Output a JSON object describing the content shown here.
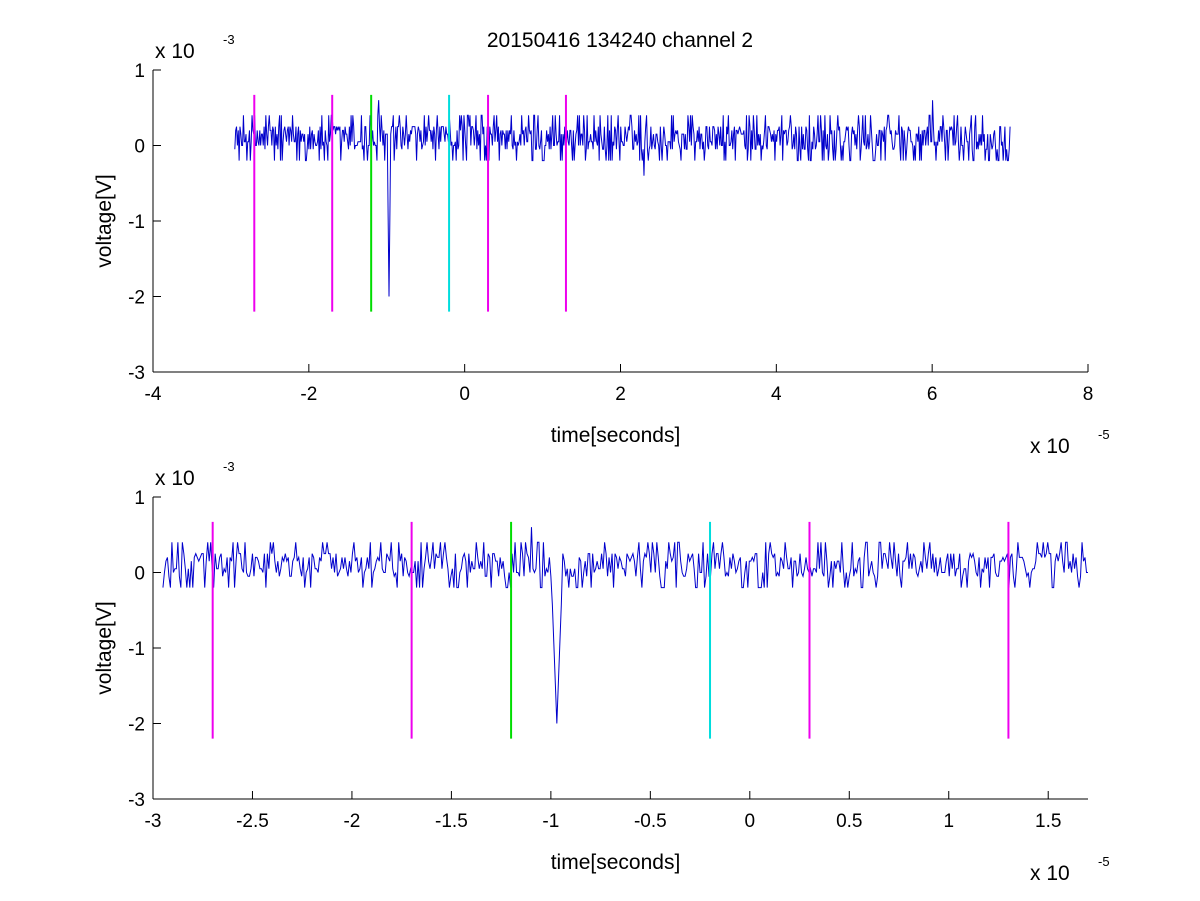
{
  "figure": {
    "title": "20150416 134240 channel 2"
  },
  "colors": {
    "signal": "#0000cc",
    "marker_magenta": "#ee00ee",
    "marker_green": "#00dd00",
    "marker_cyan": "#00dddd",
    "axes": "#000000"
  },
  "chart_data": [
    {
      "type": "line",
      "title": "20150416 134240 channel 2",
      "xlabel": "time[seconds]",
      "ylabel": "voltage[V]",
      "x_exponent_base": "x 10",
      "x_exponent_power": "-5",
      "y_exponent_base": "x 10",
      "y_exponent_power": "-3",
      "xlim": [
        -4,
        8
      ],
      "ylim": [
        -3,
        1
      ],
      "xticks": [
        -4,
        -2,
        0,
        2,
        4,
        6,
        8
      ],
      "xtick_labels": [
        "-4",
        "-2",
        "0",
        "2",
        "4",
        "6",
        "8"
      ],
      "yticks": [
        -3,
        -2,
        -1,
        0,
        1
      ],
      "ytick_labels": [
        "-3",
        "-2",
        "-1",
        "0",
        "1"
      ],
      "grid": false,
      "signal": {
        "x_start": -2.95,
        "x_end": 7.0,
        "baseline": 0.1,
        "noise_amplitude": 0.3,
        "spikes": [
          {
            "x": -0.97,
            "y": -2.0
          },
          {
            "x": 2.3,
            "y": -0.4
          },
          {
            "x": 6.0,
            "y": 0.6
          },
          {
            "x": -1.1,
            "y": 0.6
          }
        ]
      },
      "markers": [
        {
          "x": -2.7,
          "y_top": 0.67,
          "y_bottom": -2.2,
          "color": "magenta"
        },
        {
          "x": -1.7,
          "y_top": 0.67,
          "y_bottom": -2.2,
          "color": "magenta"
        },
        {
          "x": -1.2,
          "y_top": 0.67,
          "y_bottom": -2.2,
          "color": "green"
        },
        {
          "x": -0.2,
          "y_top": 0.67,
          "y_bottom": -2.2,
          "color": "cyan"
        },
        {
          "x": 0.3,
          "y_top": 0.67,
          "y_bottom": -2.2,
          "color": "magenta"
        },
        {
          "x": 1.3,
          "y_top": 0.67,
          "y_bottom": -2.2,
          "color": "magenta"
        }
      ]
    },
    {
      "type": "line",
      "title": "",
      "xlabel": "time[seconds]",
      "ylabel": "voltage[V]",
      "x_exponent_base": "x 10",
      "x_exponent_power": "-5",
      "y_exponent_base": "x 10",
      "y_exponent_power": "-3",
      "xlim": [
        -3,
        1.7
      ],
      "ylim": [
        -3,
        1
      ],
      "xticks": [
        -3,
        -2.5,
        -2,
        -1.5,
        -1,
        -0.5,
        0,
        0.5,
        1,
        1.5
      ],
      "xtick_labels": [
        "-3",
        "-2.5",
        "-2",
        "-1.5",
        "-1",
        "-0.5",
        "0",
        "0.5",
        "1",
        "1.5"
      ],
      "yticks": [
        -3,
        -2,
        -1,
        0,
        1
      ],
      "ytick_labels": [
        "-3",
        "-2",
        "-1",
        "0",
        "1"
      ],
      "grid": false,
      "signal": {
        "x_start": -2.95,
        "x_end": 1.7,
        "baseline": 0.1,
        "noise_amplitude": 0.3,
        "spikes": [
          {
            "x": -0.97,
            "y": -2.0
          },
          {
            "x": -1.1,
            "y": 0.6
          }
        ]
      },
      "markers": [
        {
          "x": -2.7,
          "y_top": 0.67,
          "y_bottom": -2.2,
          "color": "magenta"
        },
        {
          "x": -1.7,
          "y_top": 0.67,
          "y_bottom": -2.2,
          "color": "magenta"
        },
        {
          "x": -1.2,
          "y_top": 0.67,
          "y_bottom": -2.2,
          "color": "green"
        },
        {
          "x": -0.2,
          "y_top": 0.67,
          "y_bottom": -2.2,
          "color": "cyan"
        },
        {
          "x": 0.3,
          "y_top": 0.67,
          "y_bottom": -2.2,
          "color": "magenta"
        },
        {
          "x": 1.3,
          "y_top": 0.67,
          "y_bottom": -2.2,
          "color": "magenta"
        }
      ]
    }
  ]
}
